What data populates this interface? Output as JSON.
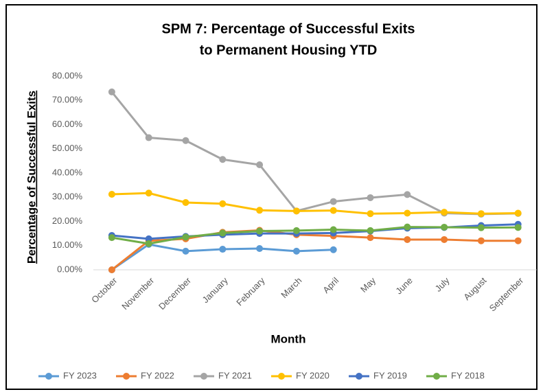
{
  "chart_data": {
    "type": "line",
    "title": [
      "SPM 7: Percentage of Successful Exits",
      "to Permanent Housing YTD"
    ],
    "x_label": "Month",
    "y_label": "Percentage of Successful Exits",
    "categories": [
      "October",
      "November",
      "December",
      "January",
      "February",
      "March",
      "April",
      "May",
      "June",
      "July",
      "August",
      "September"
    ],
    "series": [
      {
        "name": "FY 2023",
        "color": "#5b9bd5",
        "values": [
          0,
          10.5,
          7.7,
          8.5,
          8.8,
          7.7,
          8.3,
          null,
          null,
          null,
          null,
          null
        ]
      },
      {
        "name": "FY 2022",
        "color": "#ed7d31",
        "values": [
          0,
          12,
          12.8,
          15.5,
          16.3,
          14.5,
          14,
          13.3,
          12.5,
          12.5,
          12,
          12
        ]
      },
      {
        "name": "FY 2021",
        "color": "#a5a5a5",
        "values": [
          73.5,
          54.6,
          53.4,
          45.6,
          43.4,
          24.3,
          28.2,
          29.8,
          31.1,
          23.4,
          23,
          23.3
        ]
      },
      {
        "name": "FY 2020",
        "color": "#ffc000",
        "values": [
          31.2,
          31.7,
          27.8,
          27.3,
          24.6,
          24.3,
          24.5,
          23.2,
          23.4,
          23.8,
          23.2,
          23.4
        ]
      },
      {
        "name": "FY 2019",
        "color": "#4472c4",
        "values": [
          14.2,
          12.8,
          13.8,
          14.5,
          15,
          15,
          15.2,
          16,
          17.2,
          17.5,
          18.3,
          18.8
        ]
      },
      {
        "name": "FY 2018",
        "color": "#70ad47",
        "values": [
          13.3,
          10.8,
          13.5,
          15.2,
          16,
          16.2,
          16.6,
          16.2,
          17.7,
          17.6,
          17.4,
          17.5
        ]
      }
    ],
    "ylim": [
      0,
      80
    ],
    "yticks": [
      {
        "value": 0,
        "label": "0.00%"
      },
      {
        "value": 10,
        "label": "10.00%"
      },
      {
        "value": 20,
        "label": "20.00%"
      },
      {
        "value": 30,
        "label": "30.00%"
      },
      {
        "value": 40,
        "label": "40.00%"
      },
      {
        "value": 50,
        "label": "50.00%"
      },
      {
        "value": 60,
        "label": "60.00%"
      },
      {
        "value": 70,
        "label": "70.00%"
      },
      {
        "value": 80,
        "label": "80.00%"
      }
    ],
    "legend": "bottom"
  }
}
